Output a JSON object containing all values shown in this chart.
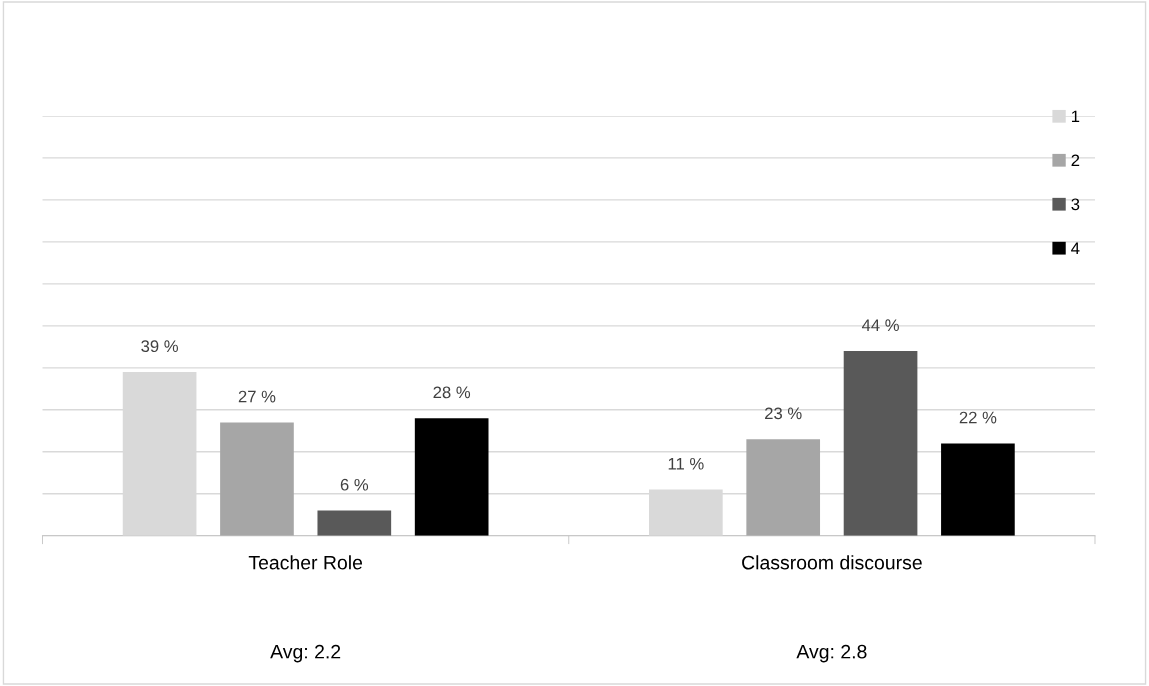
{
  "chart_data": {
    "type": "bar",
    "categories": [
      "Teacher Role",
      "Classroom discourse"
    ],
    "series": [
      {
        "name": "1",
        "color": "#d9d9d9",
        "values": [
          39,
          11
        ],
        "value_labels": [
          "39 %",
          "11 %"
        ]
      },
      {
        "name": "2",
        "color": "#a6a6a6",
        "values": [
          27,
          23
        ],
        "value_labels": [
          "27 %",
          "23 %"
        ]
      },
      {
        "name": "3",
        "color": "#595959",
        "values": [
          6,
          44
        ],
        "value_labels": [
          "6 %",
          "44 %"
        ]
      },
      {
        "name": "4",
        "color": "#000000",
        "values": [
          28,
          22
        ],
        "value_labels": [
          "28 %",
          "22 %"
        ]
      }
    ],
    "ylim": [
      0,
      100
    ],
    "yticks": [
      {
        "value": 0,
        "label": null
      },
      {
        "value": 10,
        "label": null
      },
      {
        "value": 20,
        "label": null
      },
      {
        "value": 30,
        "label": null
      },
      {
        "value": 40,
        "label": null
      },
      {
        "value": 50,
        "label": null
      },
      {
        "value": 60,
        "label": null
      },
      {
        "value": 70,
        "label": null
      },
      {
        "value": 80,
        "label": null
      },
      {
        "value": 90,
        "label": null
      },
      {
        "value": 100,
        "label": null
      }
    ],
    "grid": "y",
    "tick_labels": "x",
    "legend": "top right",
    "annotations": [
      "Avg: 2.2",
      "Avg: 2.8"
    ]
  }
}
